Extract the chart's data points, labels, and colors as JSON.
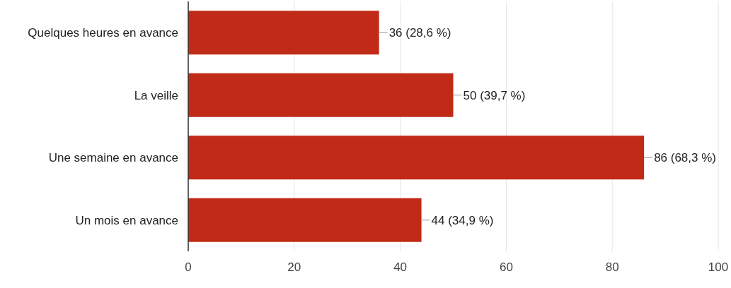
{
  "chart_data": {
    "type": "bar",
    "orientation": "horizontal",
    "categories": [
      "Quelques heures en avance",
      "La veille",
      "Une semaine en avance",
      "Un mois en avance"
    ],
    "values": [
      36,
      50,
      86,
      44
    ],
    "color": "#c12a17",
    "value_labels": [
      "36 (28,6 %)",
      "50 (39,7 %)",
      "86 (68,3 %)",
      "44 (34,9 %)"
    ],
    "xlim": [
      0,
      100
    ],
    "xticks": [
      0,
      20,
      40,
      60,
      80,
      100
    ],
    "grid": "x"
  }
}
